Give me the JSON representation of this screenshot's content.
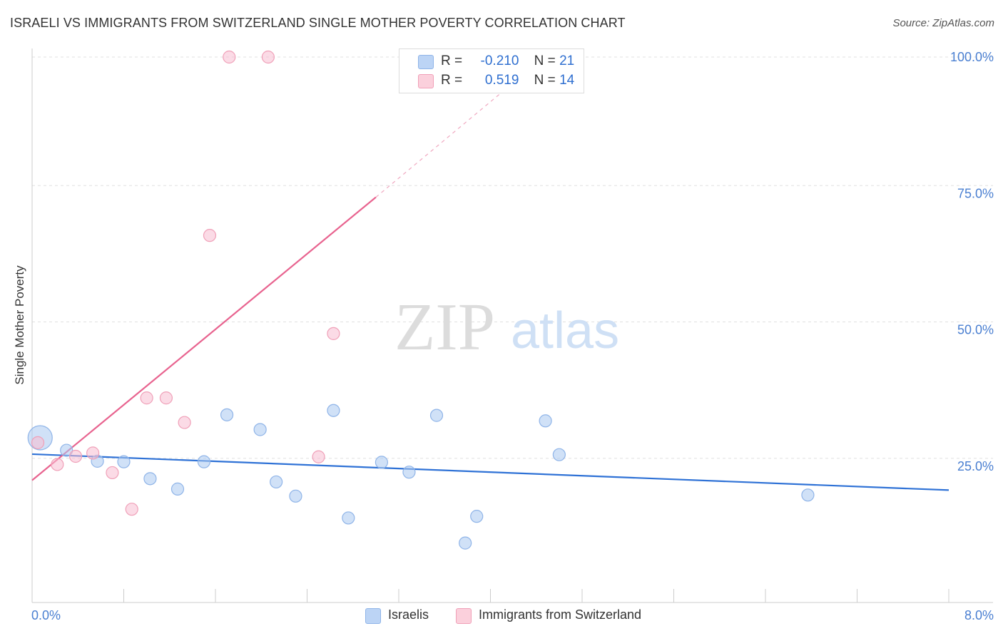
{
  "header": {
    "title": "ISRAELI VS IMMIGRANTS FROM SWITZERLAND SINGLE MOTHER POVERTY CORRELATION CHART",
    "source": "Source: ZipAtlas.com"
  },
  "watermark": {
    "zip": "ZIP",
    "atlas": "atlas"
  },
  "legend": {
    "israelis": {
      "r_label": "R =",
      "r_value": "-0.210",
      "n_label": "N =",
      "n_value": "21"
    },
    "swiss": {
      "r_label": "R =",
      "r_value": "0.519",
      "n_label": "N =",
      "n_value": "14"
    }
  },
  "chart_data": {
    "type": "scatter",
    "title": "ISRAELI VS IMMIGRANTS FROM SWITZERLAND SINGLE MOTHER POVERTY CORRELATION CHART",
    "xlabel": "",
    "ylabel": "Single Mother Poverty",
    "xlim": [
      0,
      8
    ],
    "ylim": [
      0,
      100
    ],
    "x_tick_labels": [
      "0.0%",
      "8.0%"
    ],
    "y_tick_labels": [
      "25.0%",
      "50.0%",
      "75.0%",
      "100.0%"
    ],
    "y_ticks": [
      25,
      50,
      75,
      100
    ],
    "grid": "horizontal dashed",
    "legend_position": "top-center",
    "colors": {
      "israelis": "#6fa3e8",
      "swiss": "#f08fb0",
      "israelis_line": "#2f72d6",
      "swiss_line": "#e8638f"
    },
    "series": [
      {
        "name": "Israelis",
        "points": [
          [
            0.07,
            30.2
          ],
          [
            0.3,
            27.9
          ],
          [
            0.57,
            25.9
          ],
          [
            0.8,
            25.8
          ],
          [
            1.03,
            22.7
          ],
          [
            1.27,
            20.8
          ],
          [
            1.5,
            25.8
          ],
          [
            1.7,
            34.4
          ],
          [
            1.99,
            31.7
          ],
          [
            2.13,
            22.1
          ],
          [
            2.3,
            19.5
          ],
          [
            2.63,
            35.2
          ],
          [
            2.76,
            15.5
          ],
          [
            3.05,
            25.7
          ],
          [
            3.29,
            23.9
          ],
          [
            3.53,
            34.3
          ],
          [
            3.78,
            10.9
          ],
          [
            3.88,
            15.8
          ],
          [
            4.48,
            33.3
          ],
          [
            4.6,
            27.1
          ],
          [
            6.77,
            19.7
          ]
        ],
        "large_point_index": 0,
        "trend": {
          "x": [
            0,
            8
          ],
          "y": [
            27.2,
            20.6
          ]
        }
      },
      {
        "name": "Immigrants from Switzerland",
        "points": [
          [
            0.05,
            29.3
          ],
          [
            0.22,
            25.3
          ],
          [
            0.38,
            26.8
          ],
          [
            0.53,
            27.4
          ],
          [
            0.7,
            23.8
          ],
          [
            0.87,
            17.1
          ],
          [
            1.0,
            37.5
          ],
          [
            1.17,
            37.5
          ],
          [
            1.33,
            33.0
          ],
          [
            1.55,
            67.3
          ],
          [
            1.72,
            100
          ],
          [
            2.06,
            100
          ],
          [
            2.5,
            26.7
          ],
          [
            2.63,
            49.3
          ]
        ],
        "trend": {
          "x": [
            0,
            3.0
          ],
          "y": [
            22.4,
            74.3
          ],
          "dashed_x": [
            3.0,
            4.2
          ],
          "dashed_y": [
            74.3,
            95.3
          ]
        }
      }
    ]
  },
  "bottom_legend": {
    "israelis": "Israelis",
    "swiss": "Immigrants from Switzerland"
  }
}
